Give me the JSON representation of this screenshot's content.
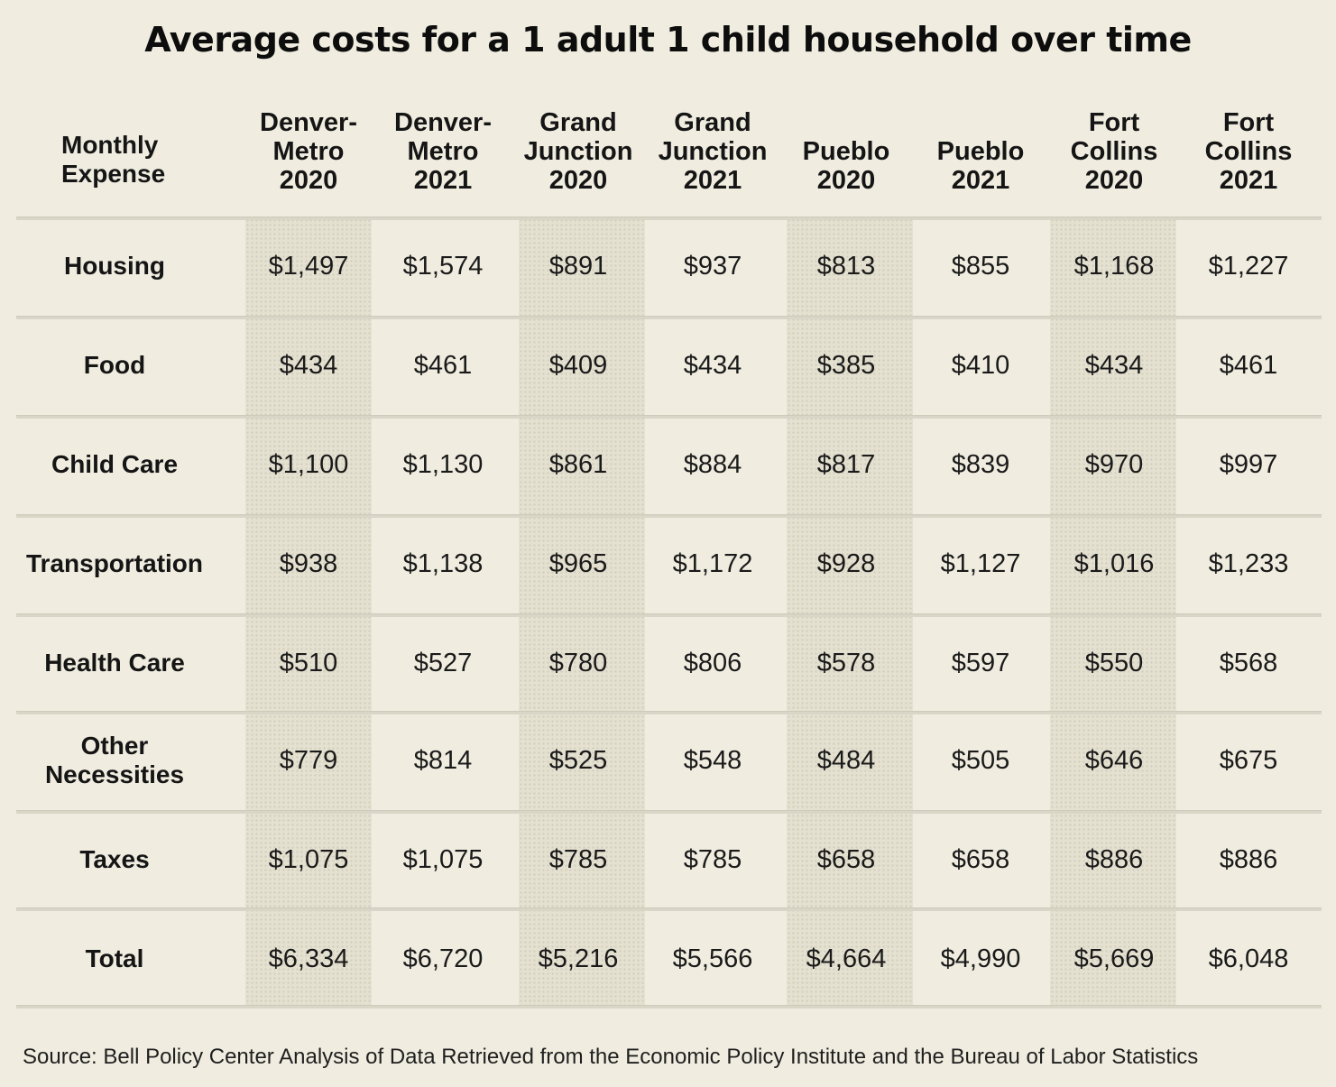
{
  "title": "Average costs for a 1 adult 1 child household over time",
  "source": "Source: Bell Policy Center Analysis of Data Retrieved from the Economic Policy Institute and the Bureau of Labor Statistics",
  "colors": {
    "background": "#f0ede0",
    "shaded_column": "#e5e1d1",
    "text": "#111111"
  },
  "chart_data": {
    "type": "table",
    "title": "Average costs for a 1 adult 1 child household over time",
    "first_column_header": [
      "Monthly",
      "Expense"
    ],
    "columns": [
      {
        "lines": [
          "Denver-",
          "Metro",
          "2020"
        ],
        "shaded": true
      },
      {
        "lines": [
          "Denver-",
          "Metro",
          "2021"
        ],
        "shaded": false
      },
      {
        "lines": [
          "Grand",
          "Junction",
          "2020"
        ],
        "shaded": true
      },
      {
        "lines": [
          "Grand",
          "Junction",
          "2021"
        ],
        "shaded": false
      },
      {
        "lines": [
          "Pueblo",
          "2020"
        ],
        "shaded": true
      },
      {
        "lines": [
          "Pueblo",
          "2021"
        ],
        "shaded": false
      },
      {
        "lines": [
          "Fort",
          "Collins",
          "2020"
        ],
        "shaded": true
      },
      {
        "lines": [
          "Fort",
          "Collins",
          "2021"
        ],
        "shaded": false
      }
    ],
    "rows": [
      {
        "label": [
          "Housing"
        ],
        "values": [
          "$1,497",
          "$1,574",
          "$891",
          "$937",
          "$813",
          "$855",
          "$1,168",
          "$1,227"
        ]
      },
      {
        "label": [
          "Food"
        ],
        "values": [
          "$434",
          "$461",
          "$409",
          "$434",
          "$385",
          "$410",
          "$434",
          "$461"
        ]
      },
      {
        "label": [
          "Child Care"
        ],
        "values": [
          "$1,100",
          "$1,130",
          "$861",
          "$884",
          "$817",
          "$839",
          "$970",
          "$997"
        ]
      },
      {
        "label": [
          "Transportation"
        ],
        "values": [
          "$938",
          "$1,138",
          "$965",
          "$1,172",
          "$928",
          "$1,127",
          "$1,016",
          "$1,233"
        ]
      },
      {
        "label": [
          "Health Care"
        ],
        "values": [
          "$510",
          "$527",
          "$780",
          "$806",
          "$578",
          "$597",
          "$550",
          "$568"
        ]
      },
      {
        "label": [
          "Other",
          "Necessities"
        ],
        "values": [
          "$779",
          "$814",
          "$525",
          "$548",
          "$484",
          "$505",
          "$646",
          "$675"
        ]
      },
      {
        "label": [
          "Taxes"
        ],
        "values": [
          "$1,075",
          "$1,075",
          "$785",
          "$785",
          "$658",
          "$658",
          "$886",
          "$886"
        ]
      },
      {
        "label": [
          "Total"
        ],
        "values": [
          "$6,334",
          "$6,720",
          "$5,216",
          "$5,566",
          "$4,664",
          "$4,990",
          "$5,669",
          "$6,048"
        ]
      }
    ]
  }
}
